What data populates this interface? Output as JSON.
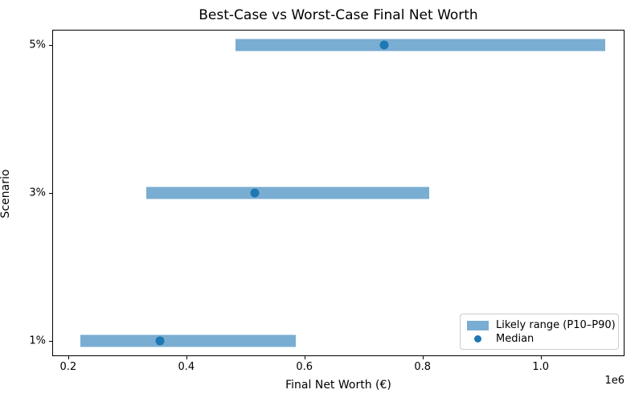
{
  "chart_data": {
    "type": "bar",
    "subtype": "horizontal-range-with-median-dot",
    "title": "Best-Case vs Worst-Case Final Net Worth",
    "xlabel": "Final Net Worth (€)",
    "ylabel": "Scenario",
    "x_offset_label": "1e6",
    "grid": false,
    "xlim": [
      173000,
      1142000
    ],
    "xticks": [
      200000,
      400000,
      600000,
      800000,
      1000000
    ],
    "xtick_labels": [
      "0.2",
      "0.4",
      "0.6",
      "0.8",
      "1.0"
    ],
    "ylim": [
      -0.105,
      2.105
    ],
    "rows": [
      {
        "label": "5%",
        "p10": 483000,
        "median": 735000,
        "p90": 1109000
      },
      {
        "label": "3%",
        "p10": 332000,
        "median": 516000,
        "p90": 811000
      },
      {
        "label": "1%",
        "p10": 220000,
        "median": 355000,
        "p90": 585000
      }
    ],
    "legend": {
      "position": "lower right",
      "items": [
        {
          "label": "Likely range (P10–P90)",
          "swatch": "bar"
        },
        {
          "label": "Median",
          "swatch": "dot"
        }
      ]
    },
    "colors": {
      "range_bar": "rgba(31,119,180,0.6)",
      "range_bar_flat": "#69add2",
      "median_dot": "#1f77b4",
      "spine": "#000000",
      "legend_border": "#cccccc"
    }
  }
}
